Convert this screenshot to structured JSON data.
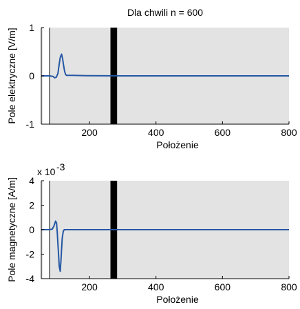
{
  "title": "Dla chwili n =  600",
  "chart_data": [
    {
      "type": "line",
      "xlabel": "Położenie",
      "ylabel": "Pole elektryczne [V/m]",
      "xlim": [
        55,
        800
      ],
      "ylim": [
        -1,
        1
      ],
      "xticks": [
        200,
        400,
        600,
        800
      ],
      "yticks": [
        -1,
        0,
        1
      ],
      "xtick_labels": [
        "200",
        "400",
        "600",
        "800"
      ],
      "ytick_labels": [
        "-1",
        "0",
        "1"
      ],
      "exponent_label": "",
      "background_color": "#e2e3e2",
      "line_color": "#2456a4",
      "shaded_region": {
        "x_start": 60,
        "x_end": 80,
        "color": "#ffffff"
      },
      "barrier": {
        "x_start": 263,
        "x_end": 283,
        "color": "#000000"
      },
      "series": [
        {
          "x": [
            55,
            80,
            90,
            95,
            100,
            105,
            108,
            112,
            116,
            119,
            122,
            125,
            128,
            131,
            135,
            140,
            150,
            180,
            300,
            500,
            800
          ],
          "y": [
            0,
            0,
            -0.01,
            -0.04,
            -0.03,
            0.05,
            0.2,
            0.38,
            0.45,
            0.36,
            0.22,
            0.1,
            0.03,
            0.01,
            0.01,
            0.01,
            0.01,
            0.005,
            0,
            0,
            0
          ]
        }
      ]
    },
    {
      "type": "line",
      "xlabel": "Położenie",
      "ylabel": "Pole magnetyczne [A/m]",
      "xlim": [
        55,
        800
      ],
      "ylim": [
        -4,
        4
      ],
      "xticks": [
        200,
        400,
        600,
        800
      ],
      "yticks": [
        -4,
        -2,
        0,
        2,
        4
      ],
      "xtick_labels": [
        "200",
        "400",
        "600",
        "800"
      ],
      "ytick_labels": [
        "-4",
        "-2",
        "0",
        "2",
        "4"
      ],
      "exponent_label": "x 10",
      "exponent_value": "-3",
      "background_color": "#e2e3e2",
      "line_color": "#2456a4",
      "shaded_region": {
        "x_start": 60,
        "x_end": 80,
        "color": "#ffffff"
      },
      "barrier": {
        "x_start": 263,
        "x_end": 283,
        "color": "#000000"
      },
      "series": [
        {
          "x": [
            55,
            80,
            88,
            93,
            98,
            101,
            103,
            106,
            109,
            112,
            114,
            116,
            118,
            121,
            124,
            128,
            135,
            180,
            300,
            500,
            800
          ],
          "y": [
            0,
            0,
            0.05,
            0.3,
            0.7,
            0.55,
            -0.2,
            -1.6,
            -3.0,
            -3.4,
            -2.6,
            -1.6,
            -0.7,
            -0.15,
            0,
            0,
            0,
            0,
            0,
            0,
            0
          ]
        }
      ]
    }
  ]
}
